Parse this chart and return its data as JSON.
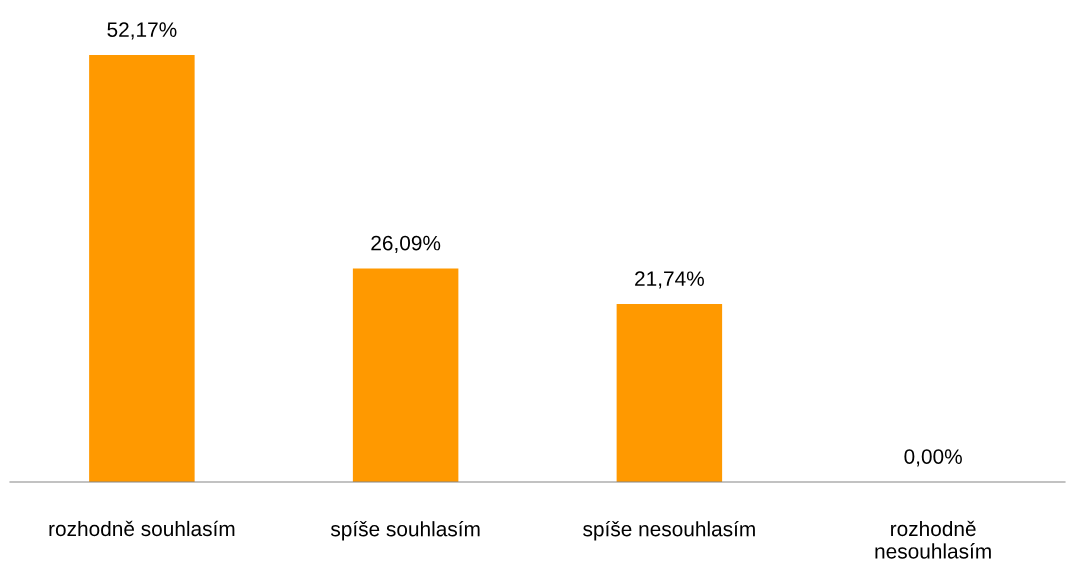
{
  "chart_data": {
    "type": "bar",
    "categories": [
      "rozhodně souhlasím",
      "spíše souhlasím",
      "spíše nesouhlasím",
      "rozhodně\nnesouhlasím"
    ],
    "values": [
      52.17,
      26.09,
      21.74,
      0
    ],
    "value_labels": [
      "52,17%",
      "26,09%",
      "21,74%",
      "0,00%"
    ],
    "color": "#ff9900",
    "grid": false,
    "legend": false
  }
}
